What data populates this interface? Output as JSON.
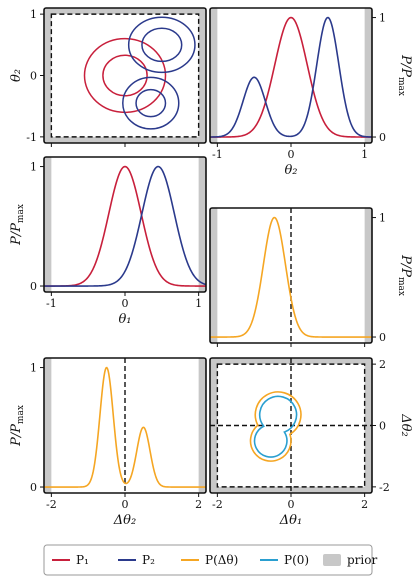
{
  "colors": {
    "P1": "#c8203c",
    "P2": "#2b3a8c",
    "Pdelta": "#f5a623",
    "P0": "#2a9fd0",
    "prior": "#c8c8c8",
    "frame": "#111111"
  },
  "legend": {
    "placement": "bottom",
    "items": [
      {
        "key": "P1",
        "label": "P₁",
        "style": "line"
      },
      {
        "key": "P2",
        "label": "P₂",
        "style": "line"
      },
      {
        "key": "Pdelta",
        "label": "P(Δθ)",
        "style": "line"
      },
      {
        "key": "P0",
        "label": "P(0)",
        "style": "line"
      },
      {
        "key": "prior",
        "label": "prior",
        "style": "patch"
      }
    ]
  },
  "chart_data": [
    {
      "id": "joint-theta",
      "type": "contour",
      "xlim": [
        -1.1,
        1.1
      ],
      "ylim": [
        -1.1,
        1.1
      ],
      "xticks": [],
      "yticks": [
        "-1",
        "0",
        "1"
      ],
      "ylabel": "θ₂",
      "prior_box": [
        -1,
        1,
        -1,
        1
      ],
      "series": [
        {
          "key": "P1",
          "contours": [
            {
              "cx": 0,
              "cy": 0,
              "rx": 0.55,
              "ry": 0.6
            },
            {
              "cx": 0,
              "cy": 0,
              "rx": 0.3,
              "ry": 0.33
            }
          ]
        },
        {
          "key": "P2",
          "contours": [
            {
              "cx": 0.5,
              "cy": 0.5,
              "rx": 0.45,
              "ry": 0.45
            },
            {
              "cx": 0.5,
              "cy": 0.5,
              "rx": 0.27,
              "ry": 0.27
            },
            {
              "cx": 0.35,
              "cy": -0.45,
              "rx": 0.38,
              "ry": 0.42
            },
            {
              "cx": 0.35,
              "cy": -0.45,
              "rx": 0.2,
              "ry": 0.22
            }
          ]
        }
      ]
    },
    {
      "id": "marginal-theta2",
      "type": "line",
      "xlim": [
        -1.1,
        1.1
      ],
      "ylim": [
        -0.05,
        1.08
      ],
      "xlabel": "θ₂",
      "ylabel": "P/P_max",
      "xticks": [
        "-1",
        "0",
        "1"
      ],
      "yticks": [
        "0",
        "1"
      ],
      "prior_range": [
        -1,
        1
      ],
      "series": [
        {
          "key": "P1",
          "gaussians": [
            {
              "mu": 0,
              "sigma": 0.22,
              "amp": 1
            }
          ]
        },
        {
          "key": "P2",
          "gaussians": [
            {
              "mu": 0.5,
              "sigma": 0.15,
              "amp": 1
            },
            {
              "mu": -0.5,
              "sigma": 0.15,
              "amp": 0.5
            }
          ]
        }
      ]
    },
    {
      "id": "marginal-theta1",
      "type": "line",
      "xlim": [
        -1.1,
        1.1
      ],
      "ylim": [
        -0.05,
        1.08
      ],
      "xlabel": "θ₁",
      "ylabel": "P/P_max",
      "xticks": [
        "-1",
        "0",
        "1"
      ],
      "yticks": [
        "0",
        "1"
      ],
      "prior_range": [
        -1,
        1
      ],
      "series": [
        {
          "key": "P1",
          "gaussians": [
            {
              "mu": 0,
              "sigma": 0.22,
              "amp": 1
            }
          ]
        },
        {
          "key": "P2",
          "gaussians": [
            {
              "mu": 0.45,
              "sigma": 0.22,
              "amp": 1
            }
          ]
        }
      ]
    },
    {
      "id": "marginal-dtheta1",
      "type": "line",
      "xlim": [
        -2.2,
        2.2
      ],
      "ylim": [
        -0.05,
        1.08
      ],
      "xlabel": "",
      "ylabel": "P/P_max",
      "xticks": [],
      "yticks": [
        "0",
        "1"
      ],
      "prior_range": [
        -2,
        2
      ],
      "zero_line": true,
      "series": [
        {
          "key": "Pdelta",
          "gaussians": [
            {
              "mu": -0.45,
              "sigma": 0.3,
              "amp": 1
            }
          ]
        }
      ]
    },
    {
      "id": "marginal-dtheta2",
      "type": "line",
      "xlim": [
        -2.2,
        2.2
      ],
      "ylim": [
        -0.05,
        1.08
      ],
      "xlabel": "Δθ₂",
      "ylabel": "P/P_max",
      "xticks": [
        "-2",
        "0",
        "2"
      ],
      "yticks": [
        "0",
        "1"
      ],
      "prior_range": [
        -2,
        2
      ],
      "zero_line": true,
      "series": [
        {
          "key": "Pdelta",
          "gaussians": [
            {
              "mu": -0.5,
              "sigma": 0.18,
              "amp": 1
            },
            {
              "mu": 0.5,
              "sigma": 0.18,
              "amp": 0.5
            }
          ]
        }
      ]
    },
    {
      "id": "joint-dtheta",
      "type": "contour",
      "xlim": [
        -2.2,
        2.2
      ],
      "ylim": [
        -2.2,
        2.2
      ],
      "xlabel": "Δθ₁",
      "ylabel": "Δθ₂",
      "xticks": [
        "-2",
        "0",
        "2"
      ],
      "yticks": [
        "-2",
        "0",
        "2"
      ],
      "prior_box": [
        -2,
        2,
        -2,
        2
      ],
      "zero_lines": true,
      "series": [
        {
          "key": "Pdelta",
          "blobs": [
            {
              "cx": -0.35,
              "cy": 0.35,
              "r": 0.62
            },
            {
              "cx": -0.55,
              "cy": -0.5,
              "r": 0.55
            }
          ]
        },
        {
          "key": "P0",
          "blobs": [
            {
              "cx": -0.35,
              "cy": 0.35,
              "r": 0.5
            },
            {
              "cx": -0.55,
              "cy": -0.5,
              "r": 0.44
            }
          ]
        }
      ]
    }
  ]
}
